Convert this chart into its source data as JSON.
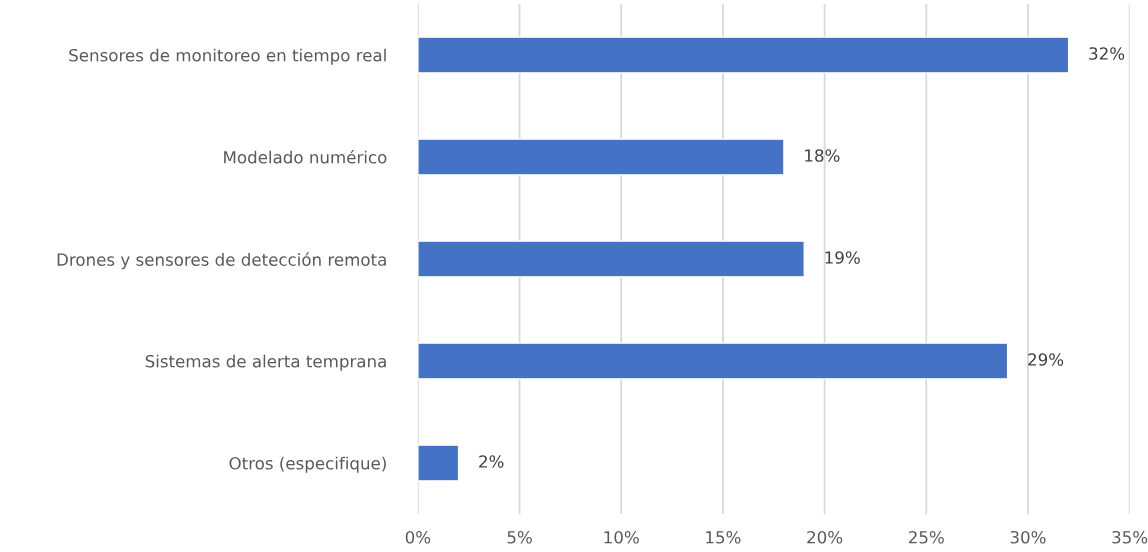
{
  "chart_data": {
    "type": "bar",
    "orientation": "horizontal",
    "categories": [
      "Sensores de monitoreo en tiempo real",
      "Modelado numérico",
      "Drones y sensores de detección remota",
      "Sistemas de alerta temprana",
      "Otros (especifique)"
    ],
    "values": [
      32,
      18,
      19,
      29,
      2
    ],
    "value_labels": [
      "32%",
      "18%",
      "19%",
      "29%",
      "2%"
    ],
    "color": "#4472c4",
    "xlim": [
      0,
      35
    ],
    "xticks": [
      {
        "value": 0,
        "label": "0%"
      },
      {
        "value": 5,
        "label": "5%"
      },
      {
        "value": 10,
        "label": "10%"
      },
      {
        "value": 15,
        "label": "15%"
      },
      {
        "value": 20,
        "label": "20%"
      },
      {
        "value": 25,
        "label": "25%"
      },
      {
        "value": 30,
        "label": "30%"
      },
      {
        "value": 35,
        "label": "35%"
      }
    ],
    "grid": "x",
    "legend": false
  }
}
